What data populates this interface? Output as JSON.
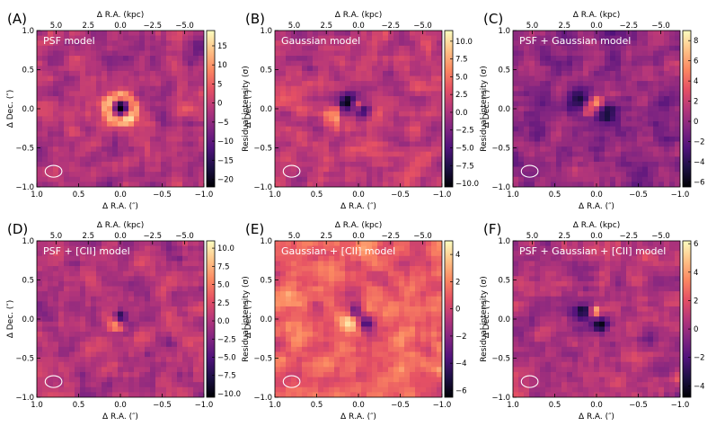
{
  "figure": {
    "top_axis_label": "Δ R.A. (kpc)",
    "bottom_axis_label": "Δ R.A. (″)",
    "left_axis_label": "Δ Dec. (″)",
    "colorbar_label": "Residual intensity (σ)",
    "top_ticks": [
      "5.0",
      "2.5",
      "0.0",
      "−2.5",
      "−5.0"
    ],
    "x_ticks": [
      "1.0",
      "0.5",
      "0.0",
      "−0.5",
      "−1.0"
    ],
    "y_ticks": [
      "1.0",
      "0.5",
      "0.0",
      "−0.5",
      "−1.0"
    ]
  },
  "colors": {
    "cmap": [
      "#000004",
      "#1c1044",
      "#4f127b",
      "#812581",
      "#b5367a",
      "#e55064",
      "#fb8761",
      "#fec287",
      "#fcfdbf"
    ]
  },
  "chart_data": [
    {
      "type": "heatmap",
      "panel": "(A)",
      "title": "PSF model",
      "xlim": [
        1.0,
        -1.0
      ],
      "ylim": [
        -1.0,
        1.0
      ],
      "top_xlim_kpc": [
        6.5,
        -6.5
      ],
      "colorbar_ticks": [
        "15",
        "10",
        "5",
        "0",
        "−5",
        "−10",
        "−15",
        "−20"
      ],
      "colorbar_values": [
        15,
        10,
        5,
        0,
        -5,
        -10,
        -15,
        -20
      ],
      "vmin": -22,
      "vmax": 19,
      "features": [
        {
          "kind": "dark_core",
          "x": 0.0,
          "y": 0.02,
          "peak": -22,
          "size": 0.07
        },
        {
          "kind": "bright_ring",
          "x": 0.0,
          "y": 0.0,
          "peak": 17,
          "radius": 0.16
        }
      ],
      "background": -2,
      "beam": {
        "x": 0.8,
        "y": -0.8,
        "w": 0.2,
        "h": 0.15
      }
    },
    {
      "type": "heatmap",
      "panel": "(B)",
      "title": "Gaussian model",
      "xlim": [
        1.0,
        -1.0
      ],
      "ylim": [
        -1.0,
        1.0
      ],
      "top_xlim_kpc": [
        6.5,
        -6.5
      ],
      "colorbar_ticks": [
        "10.0",
        "7.5",
        "5.0",
        "2.5",
        "0.0",
        "−2.5",
        "−5.0",
        "−7.5",
        "−10.0"
      ],
      "colorbar_values": [
        10,
        7.5,
        5,
        2.5,
        0,
        -2.5,
        -5,
        -7.5,
        -10
      ],
      "vmin": -10.5,
      "vmax": 11.5,
      "features": [
        {
          "kind": "dark",
          "x": 0.12,
          "y": 0.08,
          "peak": -10,
          "size": 0.08
        },
        {
          "kind": "dark",
          "x": -0.06,
          "y": -0.04,
          "peak": -9,
          "size": 0.07
        },
        {
          "kind": "bright",
          "x": 0.02,
          "y": 0.05,
          "peak": 8,
          "size": 0.05
        },
        {
          "kind": "bright_arc",
          "x": 0.2,
          "y": -0.12,
          "peak": 6,
          "size": 0.12
        }
      ],
      "background": 1,
      "beam": {
        "x": 0.8,
        "y": -0.8,
        "w": 0.2,
        "h": 0.15
      }
    },
    {
      "type": "heatmap",
      "panel": "(C)",
      "title": "PSF + Gaussian model",
      "xlim": [
        1.0,
        -1.0
      ],
      "ylim": [
        -1.0,
        1.0
      ],
      "top_xlim_kpc": [
        6.5,
        -6.5
      ],
      "colorbar_ticks": [
        "8",
        "6",
        "4",
        "2",
        "0",
        "−2",
        "−4",
        "−6"
      ],
      "colorbar_values": [
        8,
        6,
        4,
        2,
        0,
        -2,
        -4,
        -6
      ],
      "vmin": -6.5,
      "vmax": 9,
      "features": [
        {
          "kind": "dark",
          "x": 0.2,
          "y": 0.12,
          "peak": -6,
          "size": 0.1
        },
        {
          "kind": "dark",
          "x": -0.12,
          "y": -0.05,
          "peak": -5.5,
          "size": 0.1
        },
        {
          "kind": "bright",
          "x": 0.0,
          "y": 0.1,
          "peak": 6,
          "size": 0.06
        },
        {
          "kind": "bright",
          "x": 0.1,
          "y": -0.02,
          "peak": 4,
          "size": 0.06
        }
      ],
      "background": 0,
      "beam": {
        "x": 0.8,
        "y": -0.8,
        "w": 0.2,
        "h": 0.15
      }
    },
    {
      "type": "heatmap",
      "panel": "(D)",
      "title": "PSF + [CII] model",
      "xlim": [
        1.0,
        -1.0
      ],
      "ylim": [
        -1.0,
        1.0
      ],
      "top_xlim_kpc": [
        6.5,
        -6.5
      ],
      "colorbar_ticks": [
        "10.0",
        "7.5",
        "5.0",
        "2.5",
        "0.0",
        "−2.5",
        "−5.0",
        "−7.5",
        "−10.0"
      ],
      "colorbar_values": [
        10,
        7.5,
        5,
        2.5,
        0,
        -2.5,
        -5,
        -7.5,
        -10
      ],
      "vmin": -10.5,
      "vmax": 11,
      "features": [
        {
          "kind": "dark",
          "x": 0.0,
          "y": 0.02,
          "peak": -10,
          "size": 0.06
        },
        {
          "kind": "bright",
          "x": 0.05,
          "y": -0.07,
          "peak": 8,
          "size": 0.07
        }
      ],
      "background": 0,
      "beam": {
        "x": 0.8,
        "y": -0.8,
        "w": 0.2,
        "h": 0.15
      }
    },
    {
      "type": "heatmap",
      "panel": "(E)",
      "title": "Gaussian + [CII] model",
      "xlim": [
        1.0,
        -1.0
      ],
      "ylim": [
        -1.0,
        1.0
      ],
      "top_xlim_kpc": [
        6.5,
        -6.5
      ],
      "colorbar_ticks": [
        "4",
        "2",
        "0",
        "−2",
        "−4",
        "−6"
      ],
      "colorbar_values": [
        4,
        2,
        0,
        -2,
        -4,
        -6
      ],
      "vmin": -6.5,
      "vmax": 5,
      "features": [
        {
          "kind": "dark",
          "x": 0.04,
          "y": 0.1,
          "peak": -6,
          "size": 0.07
        },
        {
          "kind": "dark",
          "x": -0.08,
          "y": -0.05,
          "peak": -6,
          "size": 0.07
        },
        {
          "kind": "bright",
          "x": 0.12,
          "y": -0.02,
          "peak": 4,
          "size": 0.1
        }
      ],
      "background": 1,
      "beam": {
        "x": 0.8,
        "y": -0.8,
        "w": 0.2,
        "h": 0.15
      }
    },
    {
      "type": "heatmap",
      "panel": "(F)",
      "title": "PSF + Gaussian + [CII] model",
      "xlim": [
        1.0,
        -1.0
      ],
      "ylim": [
        -1.0,
        1.0
      ],
      "top_xlim_kpc": [
        6.5,
        -6.5
      ],
      "colorbar_ticks": [
        "6",
        "4",
        "2",
        "0",
        "−2",
        "−4"
      ],
      "colorbar_values": [
        6,
        4,
        2,
        0,
        -2,
        -4
      ],
      "vmin": -4.8,
      "vmax": 6.2,
      "features": [
        {
          "kind": "dark",
          "x": 0.15,
          "y": 0.1,
          "peak": -4.5,
          "size": 0.08
        },
        {
          "kind": "dark",
          "x": -0.05,
          "y": -0.08,
          "peak": -4.5,
          "size": 0.07
        },
        {
          "kind": "bright",
          "x": 0.02,
          "y": 0.1,
          "peak": 5,
          "size": 0.05
        }
      ],
      "background": 0.5,
      "beam": {
        "x": 0.8,
        "y": -0.8,
        "w": 0.2,
        "h": 0.15
      }
    }
  ]
}
